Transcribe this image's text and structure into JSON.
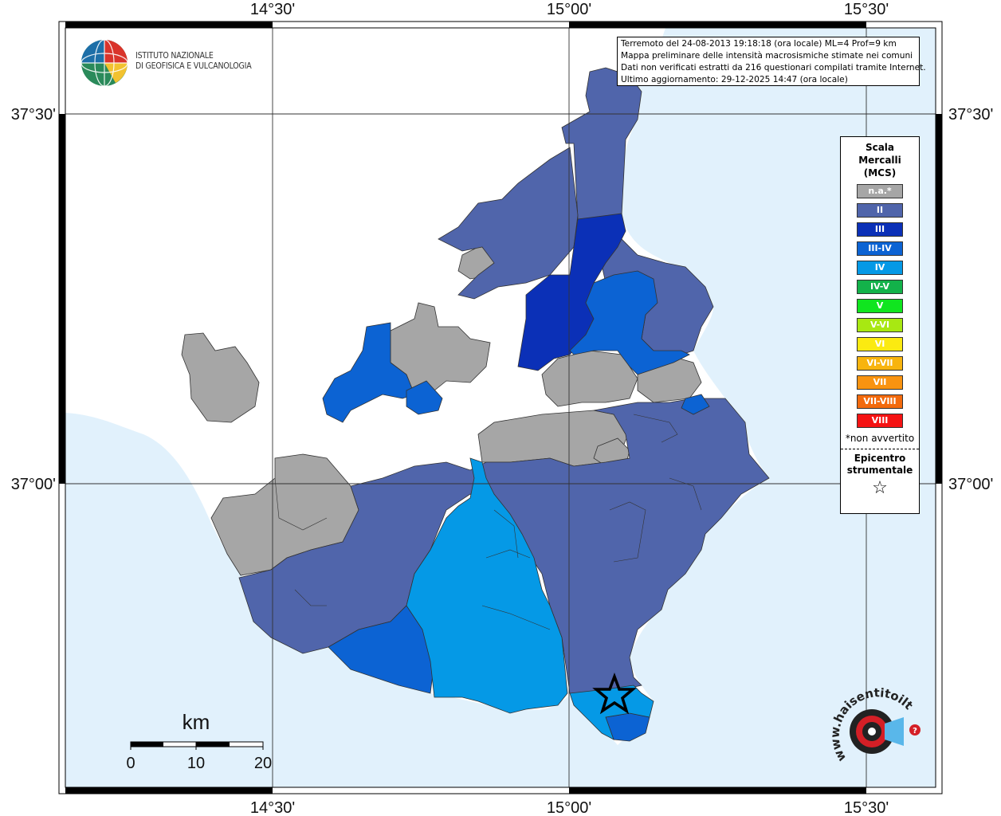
{
  "map": {
    "grid_labels": {
      "lon": [
        "14°30'",
        "15°00'",
        "15°30'"
      ],
      "lat": [
        "37°30'",
        "37°00'"
      ]
    },
    "colors": {
      "sea": "#e1f1fc",
      "unsurveyed_land": "#ffffff",
      "na": "#a6a6a6",
      "II": "#5065ab",
      "III": "#0b30b7",
      "III-IV": "#0c63d3",
      "IV": "#0599e6",
      "borders": "#333333"
    },
    "epicenter_icon": "star-icon"
  },
  "info": {
    "line1": "Terremoto del 24-08-2013 19:18:18 (ora locale) ML=4 Prof=9 km",
    "line2": "Mappa preliminare delle intensità macrosismiche stimate nei comuni",
    "line3": "Dati non verificati estratti da 216 questionari compilati tramite Internet.",
    "line4": "Ultimo aggiornamento: 29-12-2025 14:47 (ora locale)"
  },
  "legend": {
    "title_line1": "Scala",
    "title_line2": "Mercalli",
    "title_line3": "(MCS)",
    "items": [
      {
        "label": "n.a.*",
        "color": "#a6a6a6"
      },
      {
        "label": "II",
        "color": "#5065ab"
      },
      {
        "label": "III",
        "color": "#0b30b7"
      },
      {
        "label": "III-IV",
        "color": "#0c63d3"
      },
      {
        "label": "IV",
        "color": "#0599e6"
      },
      {
        "label": "IV-V",
        "color": "#13b24a"
      },
      {
        "label": "V",
        "color": "#10e51f"
      },
      {
        "label": "V-VI",
        "color": "#a8e812"
      },
      {
        "label": "VI",
        "color": "#fbea11"
      },
      {
        "label": "VI-VII",
        "color": "#f8b40e"
      },
      {
        "label": "VII",
        "color": "#f99310"
      },
      {
        "label": "VII-VIII",
        "color": "#f36a0d"
      },
      {
        "label": "VIII",
        "color": "#f51313"
      }
    ],
    "note": "*non avvertito",
    "epicenter_line1": "Epicentro",
    "epicenter_line2": "strumentale",
    "epicenter_symbol": "☆"
  },
  "scale_bar": {
    "unit": "km",
    "ticks": [
      "0",
      "10",
      "20"
    ]
  },
  "logos": {
    "ingv_line1": "ISTITUTO NAZIONALE",
    "ingv_line2": "DI GEOFISICA E VULCANOLOGIA",
    "hst_text": "www.haisentitoilterremoto.it"
  }
}
